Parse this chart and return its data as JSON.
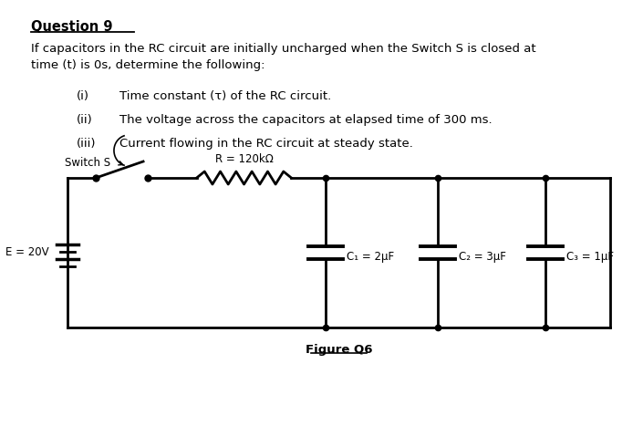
{
  "title": "Question 9",
  "body_text": "If capacitors in the RC circuit are initially uncharged when the Switch S is closed at\ntime (t) is 0s, determine the following:",
  "items": [
    [
      "(i)",
      "Time constant (τ) of the RC circuit."
    ],
    [
      "(ii)",
      "The voltage across the capacitors at elapsed time of 300 ms."
    ],
    [
      "(iii)",
      "Current flowing in the RC circuit at steady state."
    ]
  ],
  "figure_label": "Figure Q6",
  "switch_label": "Switch S",
  "resistor_label": "R = 120kΩ",
  "voltage_label": "E = 20V",
  "cap1_label": "C₁ = 2μF",
  "cap2_label": "C₂ = 3μF",
  "cap3_label": "C₃ = 1μF",
  "bg_color": "#ffffff",
  "text_color": "#000000",
  "line_color": "#000000",
  "lw": 2.0
}
